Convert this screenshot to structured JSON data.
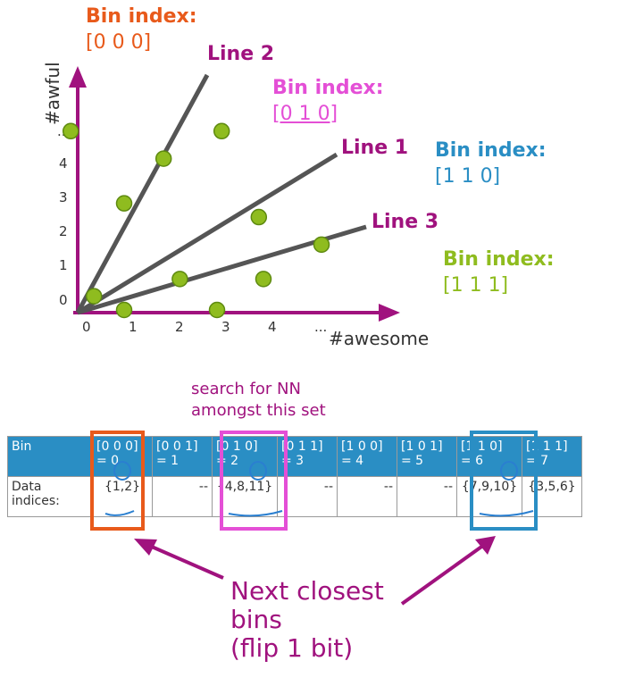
{
  "plot": {
    "x_axis_label": "#awesome",
    "y_axis_label": "#awful",
    "x_ticks": [
      "0",
      "1",
      "2",
      "3",
      "4",
      "..."
    ],
    "y_ticks": [
      "0",
      "1",
      "2",
      "3",
      "4",
      "..."
    ],
    "points": [
      {
        "x": 0.35,
        "y": 0.4
      },
      {
        "x": 1.0,
        "y": 0.0
      },
      {
        "x": 1.0,
        "y": 3.1
      },
      {
        "x": 1.85,
        "y": 4.4
      },
      {
        "x": 2.2,
        "y": 0.9
      },
      {
        "x": 3.1,
        "y": 5.2
      },
      {
        "x": 3.0,
        "y": 0.0
      },
      {
        "x": 3.9,
        "y": 2.7
      },
      {
        "x": 4.0,
        "y": 0.9
      },
      {
        "x": 5.25,
        "y": 1.9
      },
      {
        "x": -0.15,
        "y": 5.2
      }
    ],
    "lines": [
      {
        "name": "Line 1",
        "color": "#555555"
      },
      {
        "name": "Line 2",
        "color": "#555555"
      },
      {
        "name": "Line 3",
        "color": "#555555"
      }
    ],
    "accent_color": "#a0127e",
    "point_color": "#8fbc1f"
  },
  "bin_labels": [
    {
      "title": "Bin index:",
      "value": "[0 0 0]",
      "color": "#e85a1b"
    },
    {
      "title": "Bin index:",
      "value": "[0 1 0]",
      "color": "#e44fd6"
    },
    {
      "title": "Bin index:",
      "value": "[1 1 0]",
      "color": "#2a8ec4"
    },
    {
      "title": "Bin index:",
      "value": "[1 1 1]",
      "color": "#8fbc1f"
    }
  ],
  "search_note": [
    "search for NN",
    "amongst this set"
  ],
  "table": {
    "row_headers": [
      "Bin",
      "Data indices:"
    ],
    "bins": [
      {
        "code": "[0 0 0]",
        "eq": "= 0",
        "indices": "{1,2}"
      },
      {
        "code": "[0 0 1]",
        "eq": "= 1",
        "indices": "--"
      },
      {
        "code": "[0 1 0]",
        "eq": "= 2",
        "indices": "{4,8,11}"
      },
      {
        "code": "[0 1 1]",
        "eq": "= 3",
        "indices": "--"
      },
      {
        "code": "[1 0 0]",
        "eq": "= 4",
        "indices": "--"
      },
      {
        "code": "[1 0 1]",
        "eq": "= 5",
        "indices": "--"
      },
      {
        "code": "[1 1 0]",
        "eq": "= 6",
        "indices": "{7,9,10}"
      },
      {
        "code": "[1 1 1]",
        "eq": "= 7",
        "indices": "{3,5,6}"
      }
    ],
    "highlight_colors": {
      "bin0": "#e85a1b",
      "bin2": "#e44fd6",
      "bin6": "#2a8ec4"
    }
  },
  "callout": [
    "Next closest",
    "bins",
    "(flip 1 bit)"
  ]
}
